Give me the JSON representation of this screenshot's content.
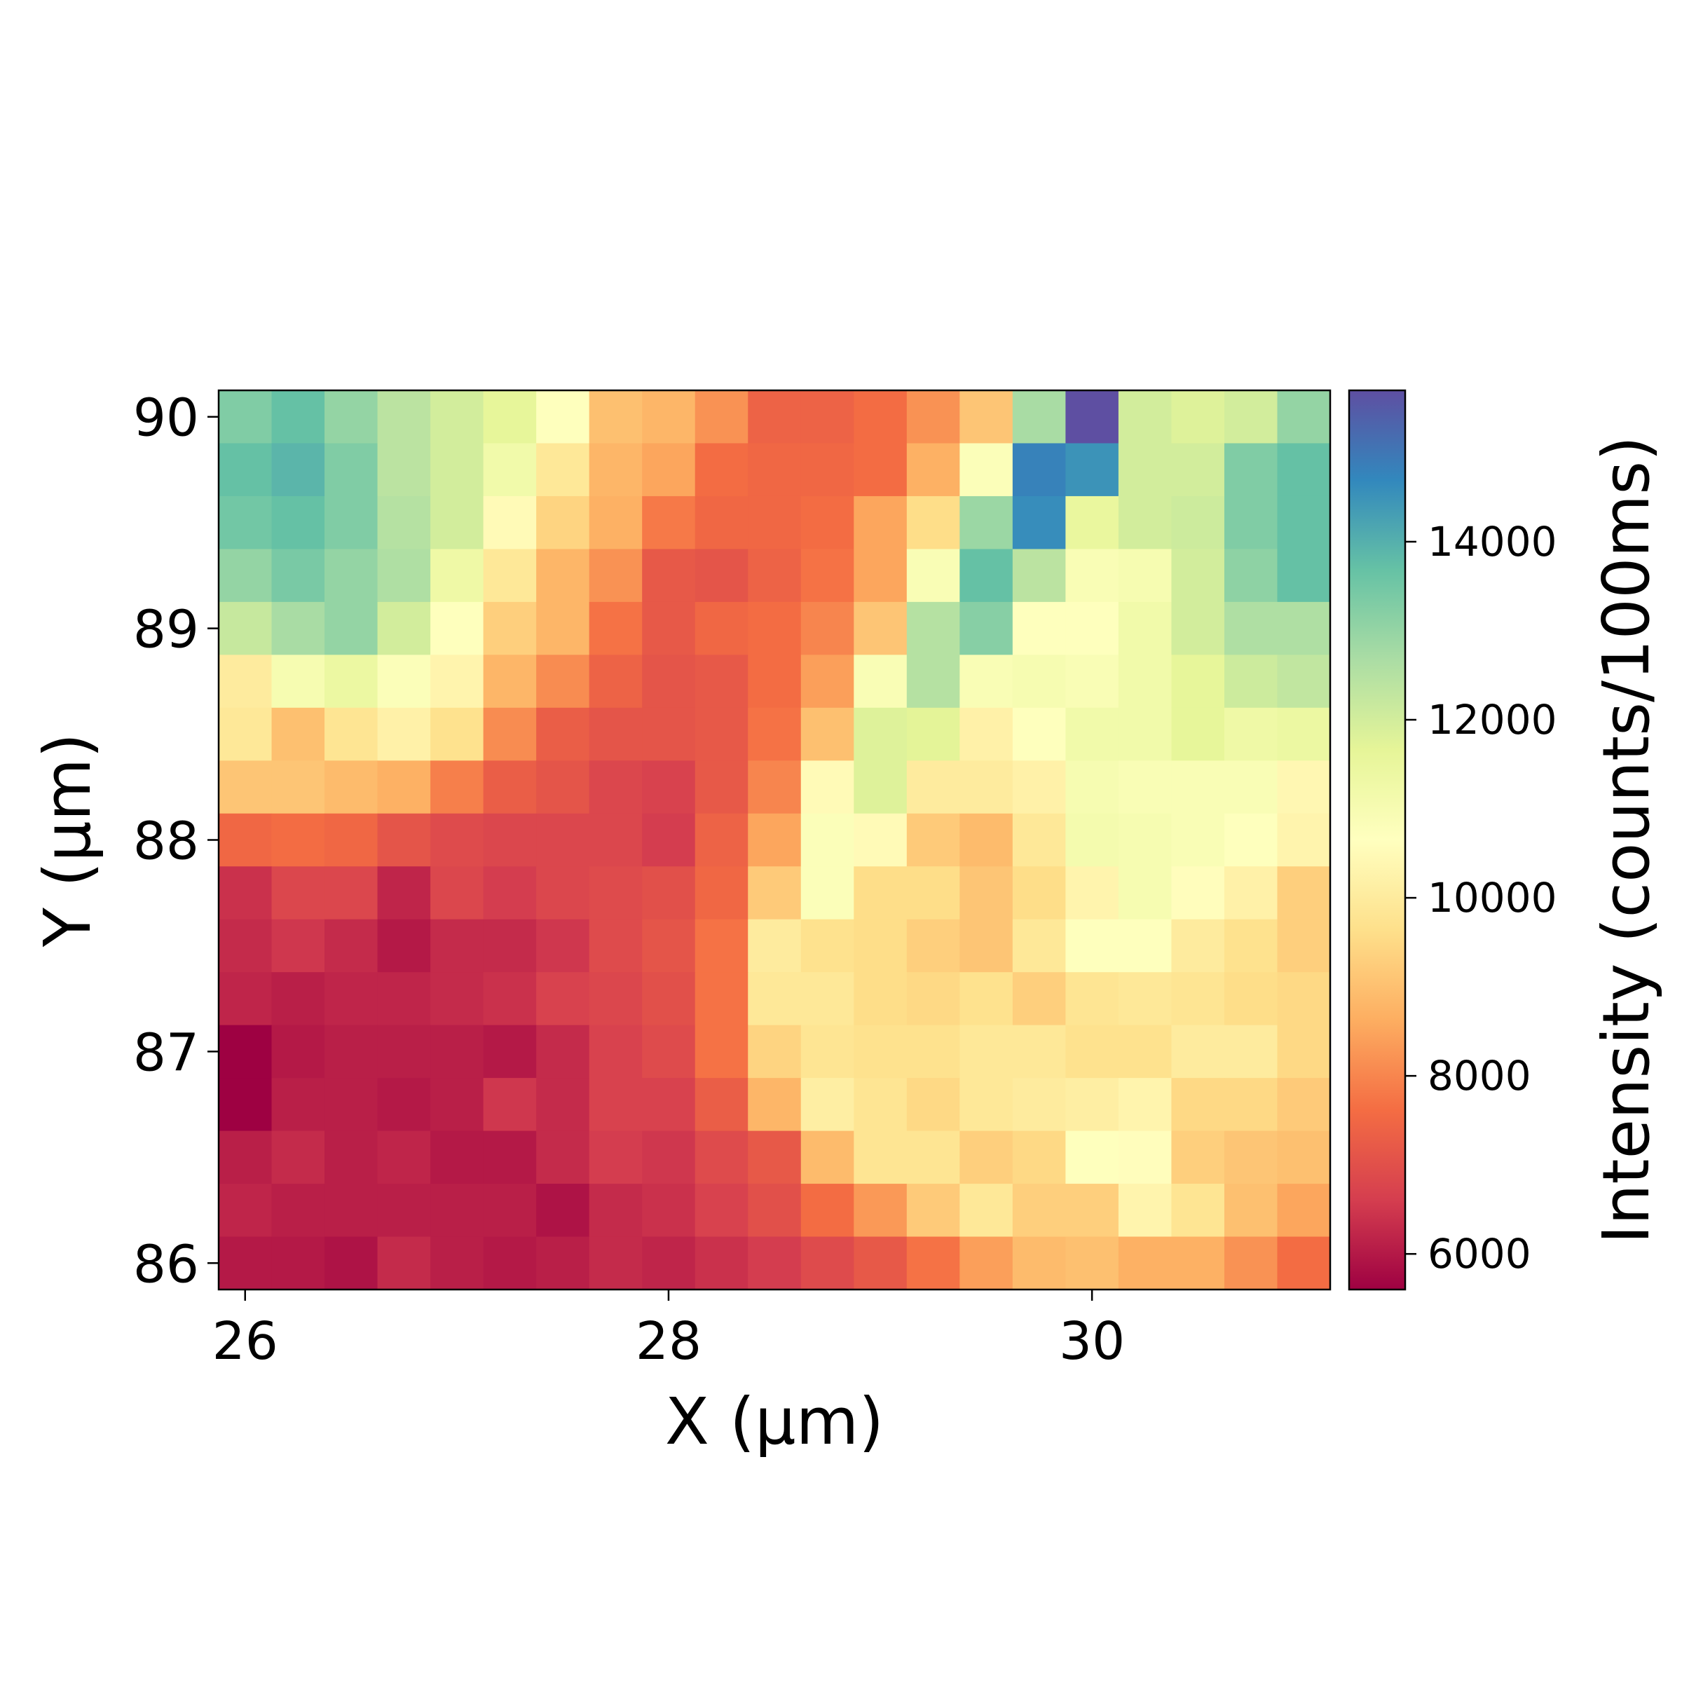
{
  "chart_data": {
    "type": "heatmap",
    "xlabel": "X (µm)",
    "ylabel": "Y (µm)",
    "colorbar_label": "Intensity (counts/100ms)",
    "colormap": "Spectral",
    "x": [
      26.0,
      26.25,
      26.5,
      26.75,
      27.0,
      27.25,
      27.5,
      27.75,
      28.0,
      28.25,
      28.5,
      28.75,
      29.0,
      29.25,
      29.5,
      29.75,
      30.0,
      30.25,
      30.5,
      30.75,
      31.0
    ],
    "y": [
      90.0,
      89.75,
      89.5,
      89.25,
      89.0,
      88.75,
      88.5,
      88.25,
      88.0,
      87.75,
      87.5,
      87.25,
      87.0,
      86.75,
      86.5,
      86.25,
      86.0
    ],
    "xlim": [
      25.875,
      31.125
    ],
    "ylim": [
      85.875,
      90.125
    ],
    "xticks": [
      26,
      28,
      30
    ],
    "yticks": [
      86,
      87,
      88,
      89,
      90
    ],
    "colorbar_range": [
      5600,
      15700
    ],
    "colorbar_ticks": [
      6000,
      8000,
      10000,
      12000,
      14000
    ],
    "values": [
      [
        13300,
        13700,
        13000,
        12400,
        12000,
        11600,
        10700,
        9000,
        8800,
        8200,
        7400,
        7400,
        7600,
        8200,
        9100,
        12700,
        15700,
        12000,
        11800,
        12000,
        13000
      ],
      [
        13700,
        13900,
        13300,
        12400,
        12000,
        11200,
        9900,
        8800,
        8500,
        7600,
        7500,
        7500,
        7600,
        8700,
        10800,
        14800,
        14500,
        12000,
        12000,
        13300,
        13700
      ],
      [
        13500,
        13700,
        13300,
        12500,
        12000,
        10500,
        9400,
        8700,
        7800,
        7500,
        7500,
        7600,
        8500,
        9600,
        12900,
        14600,
        11500,
        12000,
        12100,
        13300,
        13700
      ],
      [
        13000,
        13400,
        13000,
        12600,
        11300,
        9900,
        8800,
        8200,
        7200,
        7100,
        7400,
        7700,
        8500,
        10900,
        13700,
        12400,
        10900,
        11000,
        12000,
        13100,
        13700
      ],
      [
        12200,
        12700,
        13000,
        12000,
        10700,
        9300,
        8800,
        7700,
        7200,
        7500,
        7600,
        8000,
        9100,
        12500,
        13200,
        10700,
        10700,
        11200,
        12000,
        12600,
        12600
      ],
      [
        10000,
        11000,
        11400,
        10800,
        10300,
        8800,
        8100,
        7400,
        7100,
        7200,
        7600,
        8400,
        10900,
        12500,
        10900,
        11000,
        10900,
        11200,
        11600,
        12100,
        12300
      ],
      [
        9900,
        9000,
        9800,
        10200,
        9700,
        8100,
        7300,
        7100,
        7100,
        7200,
        7700,
        9000,
        11800,
        11700,
        10200,
        10700,
        11200,
        11200,
        11600,
        11300,
        11400
      ],
      [
        9100,
        9100,
        8900,
        8700,
        7900,
        7300,
        7100,
        6800,
        6700,
        7200,
        8000,
        10500,
        11800,
        10000,
        10000,
        10200,
        11000,
        10900,
        10900,
        10900,
        10400
      ],
      [
        7500,
        7600,
        7500,
        7100,
        6900,
        6800,
        6800,
        6800,
        6600,
        7400,
        8500,
        10800,
        10500,
        9200,
        8900,
        9900,
        11100,
        11000,
        10900,
        10700,
        10300
      ],
      [
        6400,
        6800,
        6800,
        6200,
        6800,
        6600,
        6800,
        6900,
        7000,
        7500,
        9200,
        10800,
        9600,
        9600,
        9100,
        9600,
        10300,
        11000,
        10600,
        10200,
        9300
      ],
      [
        6300,
        6500,
        6300,
        6000,
        6300,
        6300,
        6500,
        6900,
        7100,
        7700,
        10000,
        9700,
        9600,
        9300,
        9100,
        9900,
        10700,
        10700,
        10000,
        9700,
        9300
      ],
      [
        6200,
        6100,
        6200,
        6200,
        6300,
        6400,
        6700,
        6800,
        7000,
        7700,
        9900,
        9900,
        9600,
        9500,
        9700,
        9300,
        9800,
        9900,
        9800,
        9600,
        9500
      ],
      [
        5600,
        6000,
        6100,
        6100,
        6100,
        6000,
        6300,
        6700,
        6900,
        7700,
        9400,
        9800,
        9700,
        9700,
        9900,
        9900,
        9700,
        9700,
        10000,
        10000,
        9500
      ],
      [
        5600,
        6100,
        6100,
        6000,
        6100,
        6500,
        6300,
        6700,
        6700,
        7300,
        8800,
        10100,
        9800,
        9500,
        9900,
        10000,
        10100,
        10300,
        9500,
        9500,
        9200
      ],
      [
        6100,
        6300,
        6100,
        6200,
        6000,
        6000,
        6300,
        6600,
        6500,
        6900,
        7200,
        8900,
        9800,
        9800,
        9300,
        9500,
        10700,
        10600,
        9300,
        9100,
        9000
      ],
      [
        6200,
        6100,
        6100,
        6100,
        6100,
        6100,
        5900,
        6300,
        6400,
        6700,
        7000,
        7600,
        8300,
        9200,
        9900,
        9300,
        9300,
        10300,
        9800,
        9000,
        8500
      ],
      [
        6000,
        6000,
        5900,
        6300,
        6100,
        6000,
        6100,
        6300,
        6200,
        6400,
        6600,
        6900,
        7200,
        7700,
        8400,
        8900,
        9000,
        8700,
        8700,
        8200,
        7600
      ]
    ]
  }
}
